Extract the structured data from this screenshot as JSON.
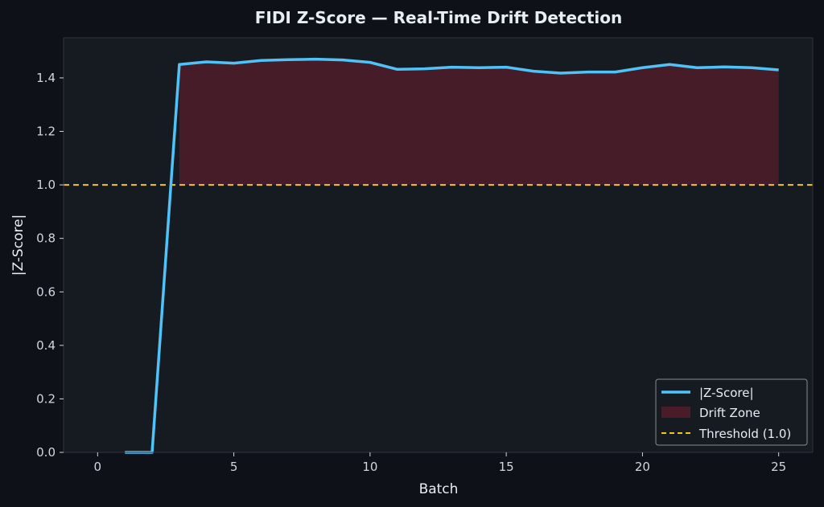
{
  "chart_data": {
    "type": "line",
    "title": "FIDI Z-Score — Real-Time Drift Detection",
    "xlabel": "Batch",
    "ylabel": "|Z-Score|",
    "xlim": [
      -1.25,
      26.25
    ],
    "ylim": [
      0,
      1.55
    ],
    "x_ticks": [
      0,
      5,
      10,
      15,
      20,
      25
    ],
    "y_ticks": [
      0.0,
      0.2,
      0.4,
      0.6,
      0.8,
      1.0,
      1.2,
      1.4
    ],
    "x_tick_labels": [
      "0",
      "5",
      "10",
      "15",
      "20",
      "25"
    ],
    "y_tick_labels": [
      "0.0",
      "0.2",
      "0.4",
      "0.6",
      "0.8",
      "1.0",
      "1.2",
      "1.4"
    ],
    "grid": false,
    "legend_position": "bottom-right",
    "series": [
      {
        "name": "|Z-Score|",
        "color": "#4fc3f7",
        "x": [
          1,
          2,
          3,
          4,
          5,
          6,
          7,
          8,
          9,
          10,
          11,
          12,
          13,
          14,
          15,
          16,
          17,
          18,
          19,
          20,
          21,
          22,
          23,
          24,
          25
        ],
        "y": [
          0.0,
          0.0,
          1.45,
          1.46,
          1.455,
          1.465,
          1.468,
          1.47,
          1.467,
          1.458,
          1.432,
          1.434,
          1.44,
          1.438,
          1.44,
          1.425,
          1.418,
          1.422,
          1.422,
          1.438,
          1.45,
          1.438,
          1.441,
          1.438,
          1.43
        ]
      }
    ],
    "drift_zone": {
      "name": "Drift Zone",
      "color": "#4a1c2a",
      "x_start": 3,
      "x_end": 25,
      "baseline": 1.0
    },
    "threshold": {
      "name": "Threshold (1.0)",
      "value": 1.0,
      "color": "#f5c518"
    },
    "legend": [
      "|Z-Score|",
      "Drift Zone",
      "Threshold (1.0)"
    ]
  },
  "colors": {
    "figure_bg": "#0e1117",
    "axes_bg": "#161b22",
    "text": "#e6edf3",
    "tick_text": "#d0d7de",
    "spine": "#30363d"
  }
}
